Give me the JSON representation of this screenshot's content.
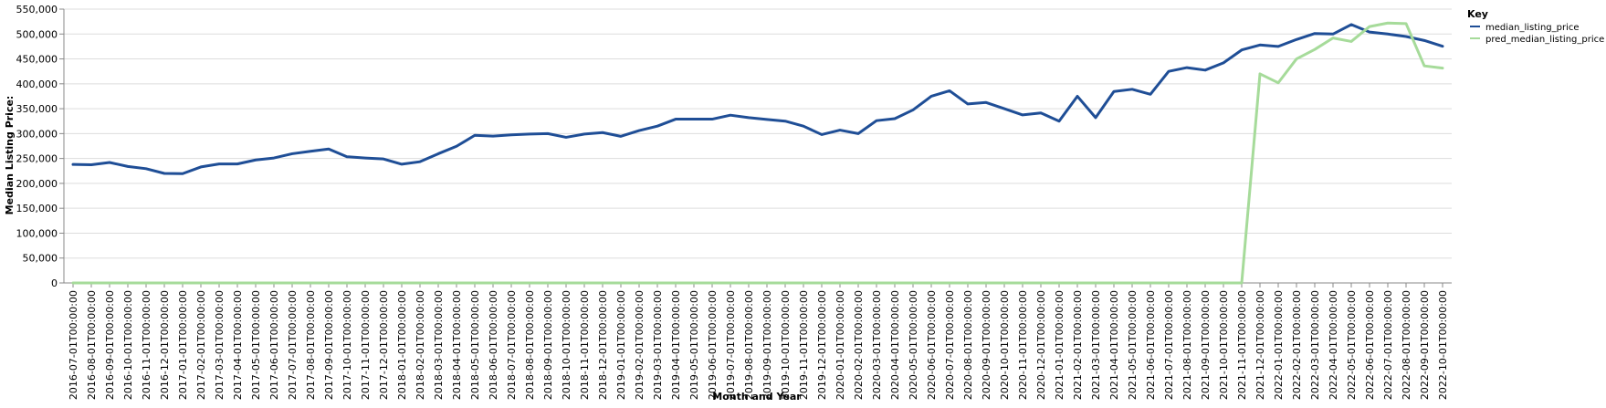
{
  "chart_data": {
    "type": "line",
    "xlabel": "Month and Year",
    "ylabel": "Median Listing Price:",
    "ylim": [
      0,
      550000
    ],
    "yticks": [
      "0",
      "50,000",
      "100,000",
      "150,000",
      "200,000",
      "250,000",
      "300,000",
      "350,000",
      "400,000",
      "450,000",
      "500,000",
      "550,000"
    ],
    "ytick_values": [
      0,
      50000,
      100000,
      150000,
      200000,
      250000,
      300000,
      350000,
      400000,
      450000,
      500000,
      550000
    ],
    "grid": true,
    "legend": {
      "title": "Key",
      "placement": "top-right"
    },
    "x": [
      "2016-07-01T00:00:00",
      "2016-08-01T00:00:00",
      "2016-09-01T00:00:00",
      "2016-10-01T00:00:00",
      "2016-11-01T00:00:00",
      "2016-12-01T00:00:00",
      "2017-01-01T00:00:00",
      "2017-02-01T00:00:00",
      "2017-03-01T00:00:00",
      "2017-04-01T00:00:00",
      "2017-05-01T00:00:00",
      "2017-06-01T00:00:00",
      "2017-07-01T00:00:00",
      "2017-08-01T00:00:00",
      "2017-09-01T00:00:00",
      "2017-10-01T00:00:00",
      "2017-11-01T00:00:00",
      "2017-12-01T00:00:00",
      "2018-01-01T00:00:00",
      "2018-02-01T00:00:00",
      "2018-03-01T00:00:00",
      "2018-04-01T00:00:00",
      "2018-05-01T00:00:00",
      "2018-06-01T00:00:00",
      "2018-07-01T00:00:00",
      "2018-08-01T00:00:00",
      "2018-09-01T00:00:00",
      "2018-10-01T00:00:00",
      "2018-11-01T00:00:00",
      "2018-12-01T00:00:00",
      "2019-01-01T00:00:00",
      "2019-02-01T00:00:00",
      "2019-03-01T00:00:00",
      "2019-04-01T00:00:00",
      "2019-05-01T00:00:00",
      "2019-06-01T00:00:00",
      "2019-07-01T00:00:00",
      "2019-08-01T00:00:00",
      "2019-09-01T00:00:00",
      "2019-10-01T00:00:00",
      "2019-11-01T00:00:00",
      "2019-12-01T00:00:00",
      "2020-01-01T00:00:00",
      "2020-02-01T00:00:00",
      "2020-03-01T00:00:00",
      "2020-04-01T00:00:00",
      "2020-05-01T00:00:00",
      "2020-06-01T00:00:00",
      "2020-07-01T00:00:00",
      "2020-08-01T00:00:00",
      "2020-09-01T00:00:00",
      "2020-10-01T00:00:00",
      "2020-11-01T00:00:00",
      "2020-12-01T00:00:00",
      "2021-01-01T00:00:00",
      "2021-02-01T00:00:00",
      "2021-03-01T00:00:00",
      "2021-04-01T00:00:00",
      "2021-05-01T00:00:00",
      "2021-06-01T00:00:00",
      "2021-07-01T00:00:00",
      "2021-08-01T00:00:00",
      "2021-09-01T00:00:00",
      "2021-10-01T00:00:00",
      "2021-11-01T00:00:00",
      "2021-12-01T00:00:00",
      "2022-01-01T00:00:00",
      "2022-02-01T00:00:00",
      "2022-03-01T00:00:00",
      "2022-04-01T00:00:00",
      "2022-05-01T00:00:00",
      "2022-06-01T00:00:00",
      "2022-07-01T00:00:00",
      "2022-08-01T00:00:00",
      "2022-09-01T00:00:00",
      "2022-10-01T00:00:00"
    ],
    "series": [
      {
        "name": "median_listing_price",
        "color": "#1f4e96",
        "values": [
          238000,
          237500,
          242000,
          234000,
          229500,
          220000,
          219500,
          233000,
          239000,
          239000,
          247000,
          251000,
          259500,
          264500,
          269000,
          253500,
          251000,
          249000,
          238500,
          243500,
          259500,
          274500,
          296500,
          295000,
          297500,
          299000,
          300000,
          292500,
          299000,
          302000,
          294500,
          306000,
          315000,
          329000,
          329000,
          329000,
          337000,
          332000,
          328500,
          325000,
          315000,
          298000,
          307000,
          300000,
          326000,
          330000,
          347500,
          375000,
          386000,
          359500,
          362500,
          350000,
          337500,
          341500,
          325000,
          375000,
          332000,
          384500,
          389000,
          379000,
          425000,
          432500,
          427500,
          442000,
          468000,
          478000,
          475000,
          489000,
          501000,
          500000,
          519000,
          504000,
          500000,
          495000,
          487000,
          475500
        ]
      },
      {
        "name": "pred_median_listing_price",
        "color": "#a6db9a",
        "values": [
          0,
          0,
          0,
          0,
          0,
          0,
          0,
          0,
          0,
          0,
          0,
          0,
          0,
          0,
          0,
          0,
          0,
          0,
          0,
          0,
          0,
          0,
          0,
          0,
          0,
          0,
          0,
          0,
          0,
          0,
          0,
          0,
          0,
          0,
          0,
          0,
          0,
          0,
          0,
          0,
          0,
          0,
          0,
          0,
          0,
          0,
          0,
          0,
          0,
          0,
          0,
          0,
          0,
          0,
          0,
          0,
          0,
          0,
          0,
          0,
          0,
          0,
          0,
          0,
          0,
          420000,
          402000,
          450000,
          469000,
          492000,
          485000,
          515000,
          522000,
          521000,
          436000,
          431500
        ]
      }
    ]
  }
}
